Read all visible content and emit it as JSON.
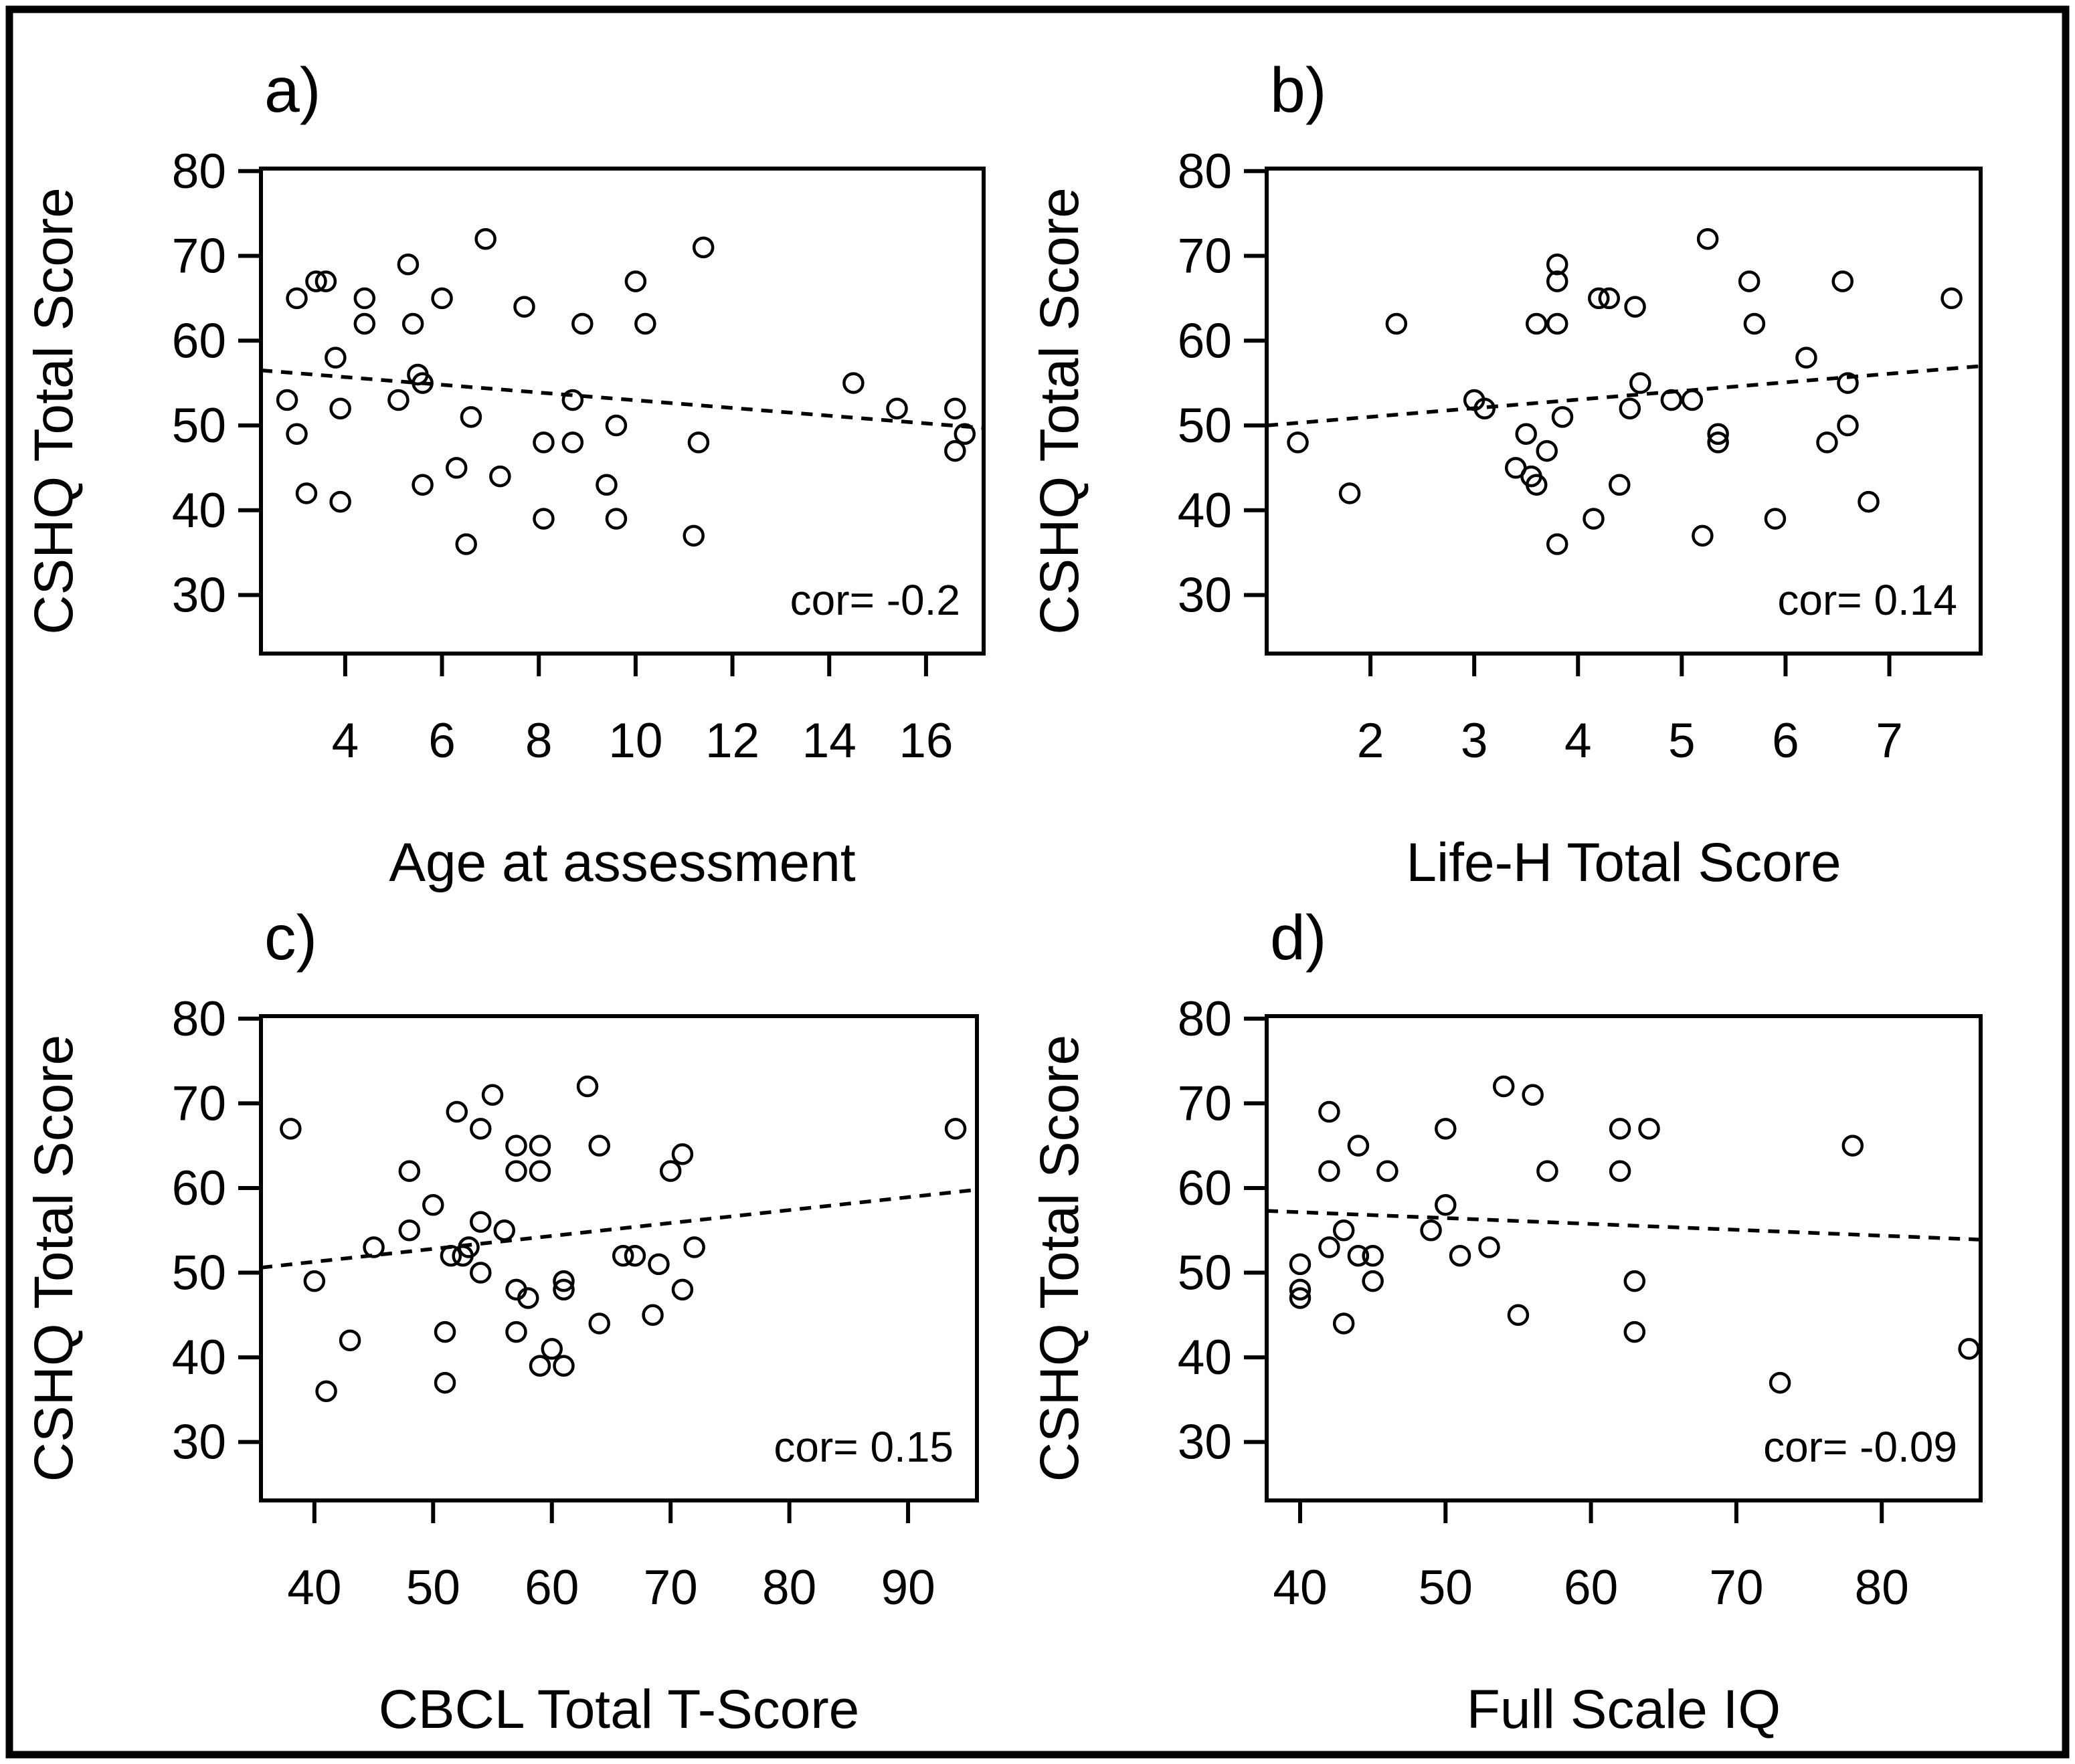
{
  "figure": {
    "description": "2x2 scatter plot matrix of CSHQ Total Score correlations (R base graphics style)",
    "background_color": "#ffffff",
    "foreground_color": "#000000",
    "border_color": "#000000",
    "shared_y_axis_label": "CSHQ Total Score",
    "marker": "open-circle",
    "trend_line_style": "dashed"
  },
  "chart_data": [
    {
      "type": "scatter",
      "panel_label": "a)",
      "xlabel": "Age at assessment",
      "ylabel": "CSHQ Total Score",
      "correlation_label": "cor= -0.2",
      "correlation": -0.2,
      "x_ticks": [
        4,
        6,
        8,
        10,
        12,
        14,
        16
      ],
      "y_ticks": [
        30,
        40,
        50,
        60,
        70,
        80
      ],
      "xlim": [
        2.26,
        17.19
      ],
      "ylim": [
        23.1,
        80.3
      ],
      "grid": false,
      "trend": {
        "x": [
          2.26,
          17.19
        ],
        "y": [
          56.5,
          49.7
        ]
      },
      "points": [
        [
          2.8,
          53
        ],
        [
          3.0,
          65
        ],
        [
          3.0,
          49
        ],
        [
          3.2,
          42
        ],
        [
          3.4,
          67
        ],
        [
          3.6,
          67
        ],
        [
          3.8,
          58
        ],
        [
          3.9,
          52
        ],
        [
          3.9,
          41
        ],
        [
          4.4,
          65
        ],
        [
          4.4,
          62
        ],
        [
          5.1,
          53
        ],
        [
          5.3,
          69
        ],
        [
          5.4,
          62
        ],
        [
          5.5,
          56
        ],
        [
          5.6,
          55
        ],
        [
          5.6,
          43
        ],
        [
          6.0,
          65
        ],
        [
          6.3,
          45
        ],
        [
          6.5,
          36
        ],
        [
          6.6,
          51
        ],
        [
          6.9,
          72
        ],
        [
          7.2,
          44
        ],
        [
          7.7,
          64
        ],
        [
          8.1,
          48
        ],
        [
          8.1,
          39
        ],
        [
          8.7,
          53
        ],
        [
          8.7,
          48
        ],
        [
          8.9,
          62
        ],
        [
          9.4,
          43
        ],
        [
          9.6,
          50
        ],
        [
          9.6,
          39
        ],
        [
          10.0,
          67
        ],
        [
          10.2,
          62
        ],
        [
          11.2,
          37
        ],
        [
          11.3,
          48
        ],
        [
          11.4,
          71
        ],
        [
          14.5,
          55
        ],
        [
          15.4,
          52
        ],
        [
          16.6,
          52
        ],
        [
          16.6,
          47
        ],
        [
          16.8,
          49
        ]
      ]
    },
    {
      "type": "scatter",
      "panel_label": "b)",
      "xlabel": "Life-H Total Score",
      "ylabel": "CSHQ Total Score",
      "correlation_label": "cor= 0.14",
      "correlation": 0.14,
      "x_ticks": [
        2,
        3,
        4,
        5,
        6,
        7
      ],
      "y_ticks": [
        30,
        40,
        50,
        60,
        70,
        80
      ],
      "xlim": [
        1.0,
        7.88
      ],
      "ylim": [
        23.1,
        80.3
      ],
      "grid": false,
      "trend": {
        "x": [
          1.0,
          7.88
        ],
        "y": [
          50.0,
          57.0
        ]
      },
      "points": [
        [
          1.3,
          48
        ],
        [
          1.8,
          42
        ],
        [
          2.25,
          62
        ],
        [
          3.0,
          53
        ],
        [
          3.1,
          52
        ],
        [
          3.4,
          45
        ],
        [
          3.5,
          49
        ],
        [
          3.55,
          44
        ],
        [
          3.6,
          43
        ],
        [
          3.6,
          62
        ],
        [
          3.7,
          47
        ],
        [
          3.8,
          69
        ],
        [
          3.8,
          67
        ],
        [
          3.8,
          62
        ],
        [
          3.8,
          36
        ],
        [
          3.85,
          51
        ],
        [
          4.15,
          39
        ],
        [
          4.2,
          65
        ],
        [
          4.3,
          65
        ],
        [
          4.4,
          43
        ],
        [
          4.5,
          52
        ],
        [
          4.55,
          64
        ],
        [
          4.6,
          55
        ],
        [
          4.9,
          53
        ],
        [
          5.1,
          53
        ],
        [
          5.2,
          37
        ],
        [
          5.25,
          72
        ],
        [
          5.35,
          49
        ],
        [
          5.35,
          48
        ],
        [
          5.65,
          67
        ],
        [
          5.7,
          62
        ],
        [
          5.9,
          39
        ],
        [
          6.2,
          58
        ],
        [
          6.4,
          48
        ],
        [
          6.55,
          67
        ],
        [
          6.6,
          55
        ],
        [
          6.6,
          50
        ],
        [
          6.8,
          41
        ],
        [
          7.6,
          65
        ]
      ]
    },
    {
      "type": "scatter",
      "panel_label": "c)",
      "xlabel": "CBCL Total T-Score",
      "ylabel": "CSHQ Total Score",
      "correlation_label": "cor= 0.15",
      "correlation": 0.15,
      "x_ticks": [
        40,
        50,
        60,
        70,
        80,
        90
      ],
      "y_ticks": [
        30,
        40,
        50,
        60,
        70,
        80
      ],
      "xlim": [
        35.5,
        95.8
      ],
      "ylim": [
        23.1,
        80.3
      ],
      "grid": false,
      "trend": {
        "x": [
          35.5,
          95.8
        ],
        "y": [
          50.6,
          59.8
        ]
      },
      "points": [
        [
          38,
          67
        ],
        [
          40,
          49
        ],
        [
          41,
          36
        ],
        [
          43,
          42
        ],
        [
          45,
          53
        ],
        [
          48,
          62
        ],
        [
          48,
          55
        ],
        [
          50,
          58
        ],
        [
          51,
          43
        ],
        [
          51,
          37
        ],
        [
          51.5,
          52
        ],
        [
          52,
          69
        ],
        [
          52.5,
          52
        ],
        [
          53,
          53
        ],
        [
          54,
          67
        ],
        [
          54,
          56
        ],
        [
          54,
          50
        ],
        [
          55,
          71
        ],
        [
          56,
          55
        ],
        [
          57,
          65
        ],
        [
          57,
          62
        ],
        [
          57,
          48
        ],
        [
          57,
          43
        ],
        [
          58,
          47
        ],
        [
          59,
          65
        ],
        [
          59,
          62
        ],
        [
          59,
          39
        ],
        [
          60,
          41
        ],
        [
          61,
          49
        ],
        [
          61,
          48
        ],
        [
          61,
          39
        ],
        [
          63,
          72
        ],
        [
          64,
          65
        ],
        [
          64,
          44
        ],
        [
          66,
          52
        ],
        [
          67,
          52
        ],
        [
          68.5,
          45
        ],
        [
          69,
          51
        ],
        [
          70,
          62
        ],
        [
          71,
          64
        ],
        [
          71,
          48
        ],
        [
          72,
          53
        ],
        [
          94,
          67
        ]
      ]
    },
    {
      "type": "scatter",
      "panel_label": "d)",
      "xlabel": "Full Scale IQ",
      "ylabel": "CSHQ Total Score",
      "correlation_label": "cor= -0.09",
      "correlation": -0.09,
      "x_ticks": [
        40,
        50,
        60,
        70,
        80
      ],
      "y_ticks": [
        30,
        40,
        50,
        60,
        70,
        80
      ],
      "xlim": [
        37.7,
        86.8
      ],
      "ylim": [
        23.1,
        80.3
      ],
      "grid": false,
      "trend": {
        "x": [
          37.7,
          86.8
        ],
        "y": [
          57.3,
          53.9
        ]
      },
      "points": [
        [
          40,
          51
        ],
        [
          40,
          48
        ],
        [
          40,
          47
        ],
        [
          42,
          69
        ],
        [
          42,
          62
        ],
        [
          42,
          53
        ],
        [
          43,
          55
        ],
        [
          43,
          44
        ],
        [
          44,
          65
        ],
        [
          44,
          52
        ],
        [
          45,
          52
        ],
        [
          45,
          49
        ],
        [
          46,
          62
        ],
        [
          49,
          55
        ],
        [
          50,
          67
        ],
        [
          50,
          58
        ],
        [
          51,
          52
        ],
        [
          53,
          53
        ],
        [
          54,
          72
        ],
        [
          55,
          45
        ],
        [
          56,
          71
        ],
        [
          57,
          62
        ],
        [
          62,
          67
        ],
        [
          62,
          62
        ],
        [
          63,
          49
        ],
        [
          63,
          43
        ],
        [
          64,
          67
        ],
        [
          73,
          37
        ],
        [
          78,
          65
        ],
        [
          86,
          41
        ]
      ]
    }
  ]
}
